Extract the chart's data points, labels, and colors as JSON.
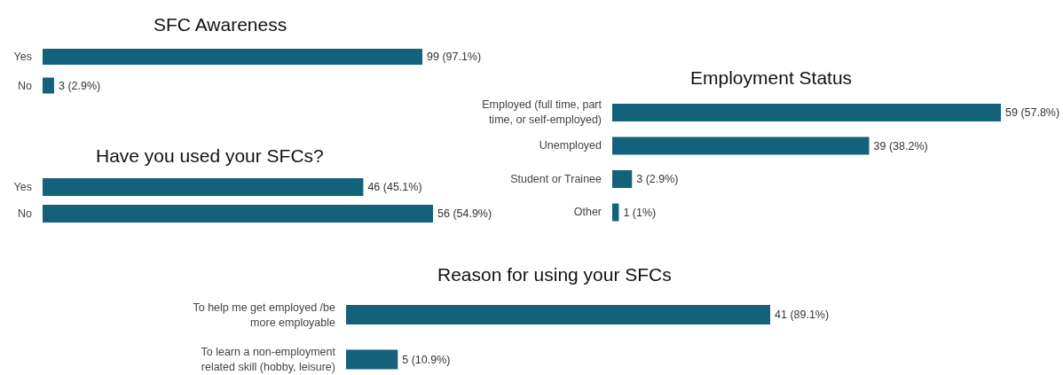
{
  "chart_data": [
    {
      "type": "bar",
      "orientation": "horizontal",
      "title": "SFC Awareness",
      "categories": [
        "Yes",
        "No"
      ],
      "values": [
        99,
        3
      ],
      "value_labels": [
        "99 (97.1%)",
        "3 (2.9%)"
      ],
      "color": "#14617c"
    },
    {
      "type": "bar",
      "orientation": "horizontal",
      "title": "Have you used your SFCs?",
      "categories": [
        "Yes",
        "No"
      ],
      "values": [
        46,
        56
      ],
      "value_labels": [
        "46 (45.1%)",
        "56 (54.9%)"
      ],
      "color": "#14617c"
    },
    {
      "type": "bar",
      "orientation": "horizontal",
      "title": "Employment Status",
      "categories": [
        "Employed (full time, part time, or self-employed)",
        "Unemployed",
        "Student or Trainee",
        "Other"
      ],
      "values": [
        59,
        39,
        3,
        1
      ],
      "value_labels": [
        "59 (57.8%)",
        "39 (38.2%)",
        "3 (2.9%)",
        "1 (1%)"
      ],
      "color": "#14617c"
    },
    {
      "type": "bar",
      "orientation": "horizontal",
      "title": "Reason for using your SFCs",
      "categories": [
        "To help me get employed /be more employable",
        "To learn a non-employment related skill (hobby, leisure)"
      ],
      "values": [
        41,
        5
      ],
      "value_labels": [
        "41 (89.1%)",
        "5 (10.9%)"
      ],
      "color": "#14617c"
    }
  ]
}
